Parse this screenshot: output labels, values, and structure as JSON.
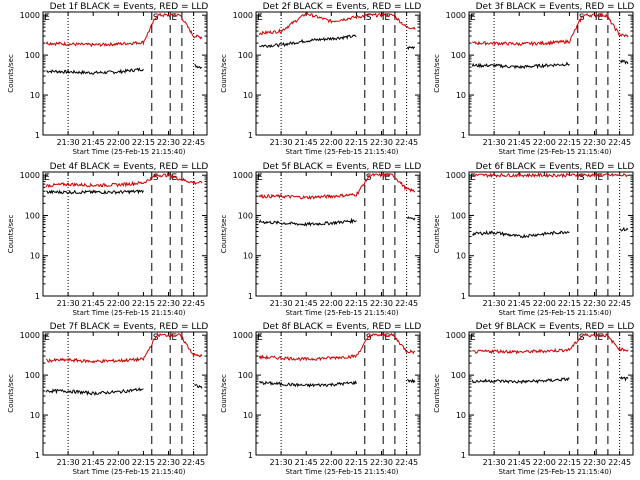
{
  "figure": {
    "x_tick_labels": [
      "21:30",
      "21:45",
      "22:00",
      "22:15",
      "22:30",
      "22:45"
    ],
    "y_tick_labels": [
      "1",
      "10",
      "100",
      "1000"
    ],
    "ylabel": "Counts/sec",
    "xlabel": "Start Time (25-Feb-15 21:15:40)",
    "markers": [
      "E",
      "S",
      "E"
    ]
  },
  "chart_data": [
    {
      "type": "line",
      "title": "Det 1f BLACK = Events, RED = LLD",
      "xlabel": "Start Time (25-Feb-15 21:15:40)",
      "ylabel": "Counts/sec",
      "yscale": "log",
      "ylim": [
        1,
        1200
      ],
      "x": [
        "21:17",
        "21:30",
        "21:45",
        "22:00",
        "22:15",
        "22:23",
        "22:30",
        "22:37",
        "22:45",
        "22:50"
      ],
      "series": [
        {
          "color": "#000000",
          "values": [
            40,
            38,
            36,
            38,
            45,
            null,
            null,
            null,
            55,
            50
          ]
        },
        {
          "color": "#d00000",
          "values": [
            200,
            190,
            180,
            190,
            210,
            1000,
            1000,
            1000,
            300,
            280
          ]
        }
      ],
      "vlines_dotted": [
        "21:30",
        "22:45"
      ],
      "vlines_dashed": [
        "22:20",
        "22:31",
        "22:38"
      ]
    },
    {
      "type": "line",
      "title": "Det 2f BLACK = Events, RED = LLD",
      "xlabel": "Start Time (25-Feb-15 21:15:40)",
      "ylabel": "Counts/sec",
      "yscale": "log",
      "ylim": [
        1,
        1200
      ],
      "x": [
        "21:17",
        "21:30",
        "21:45",
        "22:00",
        "22:15",
        "22:23",
        "22:30",
        "22:37",
        "22:45",
        "22:50"
      ],
      "series": [
        {
          "color": "#000000",
          "values": [
            170,
            180,
            230,
            260,
            300,
            null,
            null,
            null,
            150,
            160
          ]
        },
        {
          "color": "#d00000",
          "values": [
            350,
            400,
            1100,
            700,
            900,
            1000,
            1000,
            1000,
            500,
            480
          ]
        }
      ],
      "vlines_dotted": [
        "21:30",
        "22:45"
      ],
      "vlines_dashed": [
        "22:20",
        "22:31",
        "22:38"
      ]
    },
    {
      "type": "line",
      "title": "Det 3f BLACK = Events, RED = LLD",
      "xlabel": "Start Time (25-Feb-15 21:15:40)",
      "ylabel": "Counts/sec",
      "yscale": "log",
      "ylim": [
        1,
        1200
      ],
      "x": [
        "21:17",
        "21:30",
        "21:45",
        "22:00",
        "22:15",
        "22:23",
        "22:30",
        "22:37",
        "22:45",
        "22:50"
      ],
      "series": [
        {
          "color": "#000000",
          "values": [
            55,
            55,
            50,
            55,
            60,
            null,
            null,
            null,
            70,
            65
          ]
        },
        {
          "color": "#d00000",
          "values": [
            200,
            200,
            190,
            200,
            220,
            1000,
            1000,
            1000,
            320,
            300
          ]
        }
      ],
      "vlines_dotted": [
        "21:30",
        "22:45"
      ],
      "vlines_dashed": [
        "22:20",
        "22:31",
        "22:38"
      ]
    },
    {
      "type": "line",
      "title": "Det 4f BLACK = Events, RED = LLD",
      "xlabel": "Start Time (25-Feb-15 21:15:40)",
      "ylabel": "Counts/sec",
      "yscale": "log",
      "ylim": [
        1,
        1200
      ],
      "x": [
        "21:17",
        "21:30",
        "21:45",
        "22:00",
        "22:15",
        "22:23",
        "22:30",
        "22:37",
        "22:45",
        "22:50"
      ],
      "series": [
        {
          "color": "#000000",
          "values": [
            380,
            380,
            380,
            380,
            400,
            null,
            null,
            null,
            null,
            null
          ]
        },
        {
          "color": "#d00000",
          "values": [
            550,
            600,
            560,
            580,
            650,
            1000,
            1000,
            800,
            650,
            650
          ]
        }
      ],
      "vlines_dotted": [
        "21:30",
        "22:45"
      ],
      "vlines_dashed": [
        "22:20",
        "22:31",
        "22:38"
      ]
    },
    {
      "type": "line",
      "title": "Det 5f BLACK = Events, RED = LLD",
      "xlabel": "Start Time (25-Feb-15 21:15:40)",
      "ylabel": "Counts/sec",
      "yscale": "log",
      "ylim": [
        1,
        1200
      ],
      "x": [
        "21:17",
        "21:30",
        "21:45",
        "22:00",
        "22:15",
        "22:23",
        "22:30",
        "22:37",
        "22:45",
        "22:50"
      ],
      "series": [
        {
          "color": "#000000",
          "values": [
            70,
            65,
            60,
            65,
            75,
            null,
            null,
            null,
            90,
            85
          ]
        },
        {
          "color": "#d00000",
          "values": [
            300,
            300,
            280,
            300,
            330,
            1000,
            1000,
            1000,
            450,
            400
          ]
        }
      ],
      "vlines_dotted": [
        "21:30",
        "22:45"
      ],
      "vlines_dashed": [
        "22:20",
        "22:31",
        "22:38"
      ]
    },
    {
      "type": "line",
      "title": "Det 6f BLACK = Events, RED = LLD",
      "xlabel": "Start Time (25-Feb-15 21:15:40)",
      "ylabel": "Counts/sec",
      "yscale": "log",
      "ylim": [
        1,
        1200
      ],
      "x": [
        "21:17",
        "21:30",
        "21:45",
        "22:00",
        "22:15",
        "22:23",
        "22:30",
        "22:37",
        "22:45",
        "22:50"
      ],
      "series": [
        {
          "color": "#000000",
          "values": [
            35,
            38,
            30,
            35,
            40,
            null,
            null,
            null,
            45,
            45
          ]
        },
        {
          "color": "#d00000",
          "values": [
            1000,
            1000,
            1000,
            1000,
            1000,
            1000,
            1000,
            1000,
            1000,
            1000
          ]
        }
      ],
      "vlines_dotted": [
        "21:30",
        "22:45"
      ],
      "vlines_dashed": [
        "22:20",
        "22:31",
        "22:38"
      ]
    },
    {
      "type": "line",
      "title": "Det 7f BLACK = Events, RED = LLD",
      "xlabel": "Start Time (25-Feb-15 21:15:40)",
      "ylabel": "Counts/sec",
      "yscale": "log",
      "ylim": [
        1,
        1200
      ],
      "x": [
        "21:17",
        "21:30",
        "21:45",
        "22:00",
        "22:15",
        "22:23",
        "22:30",
        "22:37",
        "22:45",
        "22:50"
      ],
      "series": [
        {
          "color": "#000000",
          "values": [
            40,
            40,
            35,
            38,
            45,
            null,
            null,
            null,
            55,
            50
          ]
        },
        {
          "color": "#d00000",
          "values": [
            230,
            240,
            220,
            230,
            250,
            1000,
            1000,
            1000,
            320,
            300
          ]
        }
      ],
      "vlines_dotted": [
        "21:30",
        "22:45"
      ],
      "vlines_dashed": [
        "22:20",
        "22:31",
        "22:38"
      ]
    },
    {
      "type": "line",
      "title": "Det 8f BLACK = Events, RED = LLD",
      "xlabel": "Start Time (25-Feb-15 21:15:40)",
      "ylabel": "Counts/sec",
      "yscale": "log",
      "ylim": [
        1,
        1200
      ],
      "x": [
        "21:17",
        "21:30",
        "21:45",
        "22:00",
        "22:15",
        "22:23",
        "22:30",
        "22:37",
        "22:45",
        "22:50"
      ],
      "series": [
        {
          "color": "#000000",
          "values": [
            65,
            60,
            55,
            58,
            65,
            null,
            null,
            null,
            75,
            70
          ]
        },
        {
          "color": "#d00000",
          "values": [
            280,
            270,
            250,
            270,
            300,
            1000,
            1000,
            1000,
            400,
            380
          ]
        }
      ],
      "vlines_dotted": [
        "21:30",
        "22:45"
      ],
      "vlines_dashed": [
        "22:20",
        "22:31",
        "22:38"
      ]
    },
    {
      "type": "line",
      "title": "Det 9f BLACK = Events, RED = LLD",
      "xlabel": "Start Time (25-Feb-15 21:15:40)",
      "ylabel": "Counts/sec",
      "yscale": "log",
      "ylim": [
        1,
        1200
      ],
      "x": [
        "21:17",
        "21:30",
        "21:45",
        "22:00",
        "22:15",
        "22:23",
        "22:30",
        "22:37",
        "22:45",
        "22:50"
      ],
      "series": [
        {
          "color": "#000000",
          "values": [
            70,
            72,
            68,
            72,
            80,
            null,
            null,
            null,
            85,
            80
          ]
        },
        {
          "color": "#d00000",
          "values": [
            380,
            400,
            380,
            400,
            430,
            1000,
            1000,
            1000,
            450,
            420
          ]
        }
      ],
      "vlines_dotted": [
        "21:30",
        "22:45"
      ],
      "vlines_dashed": [
        "22:20",
        "22:31",
        "22:38"
      ]
    }
  ]
}
